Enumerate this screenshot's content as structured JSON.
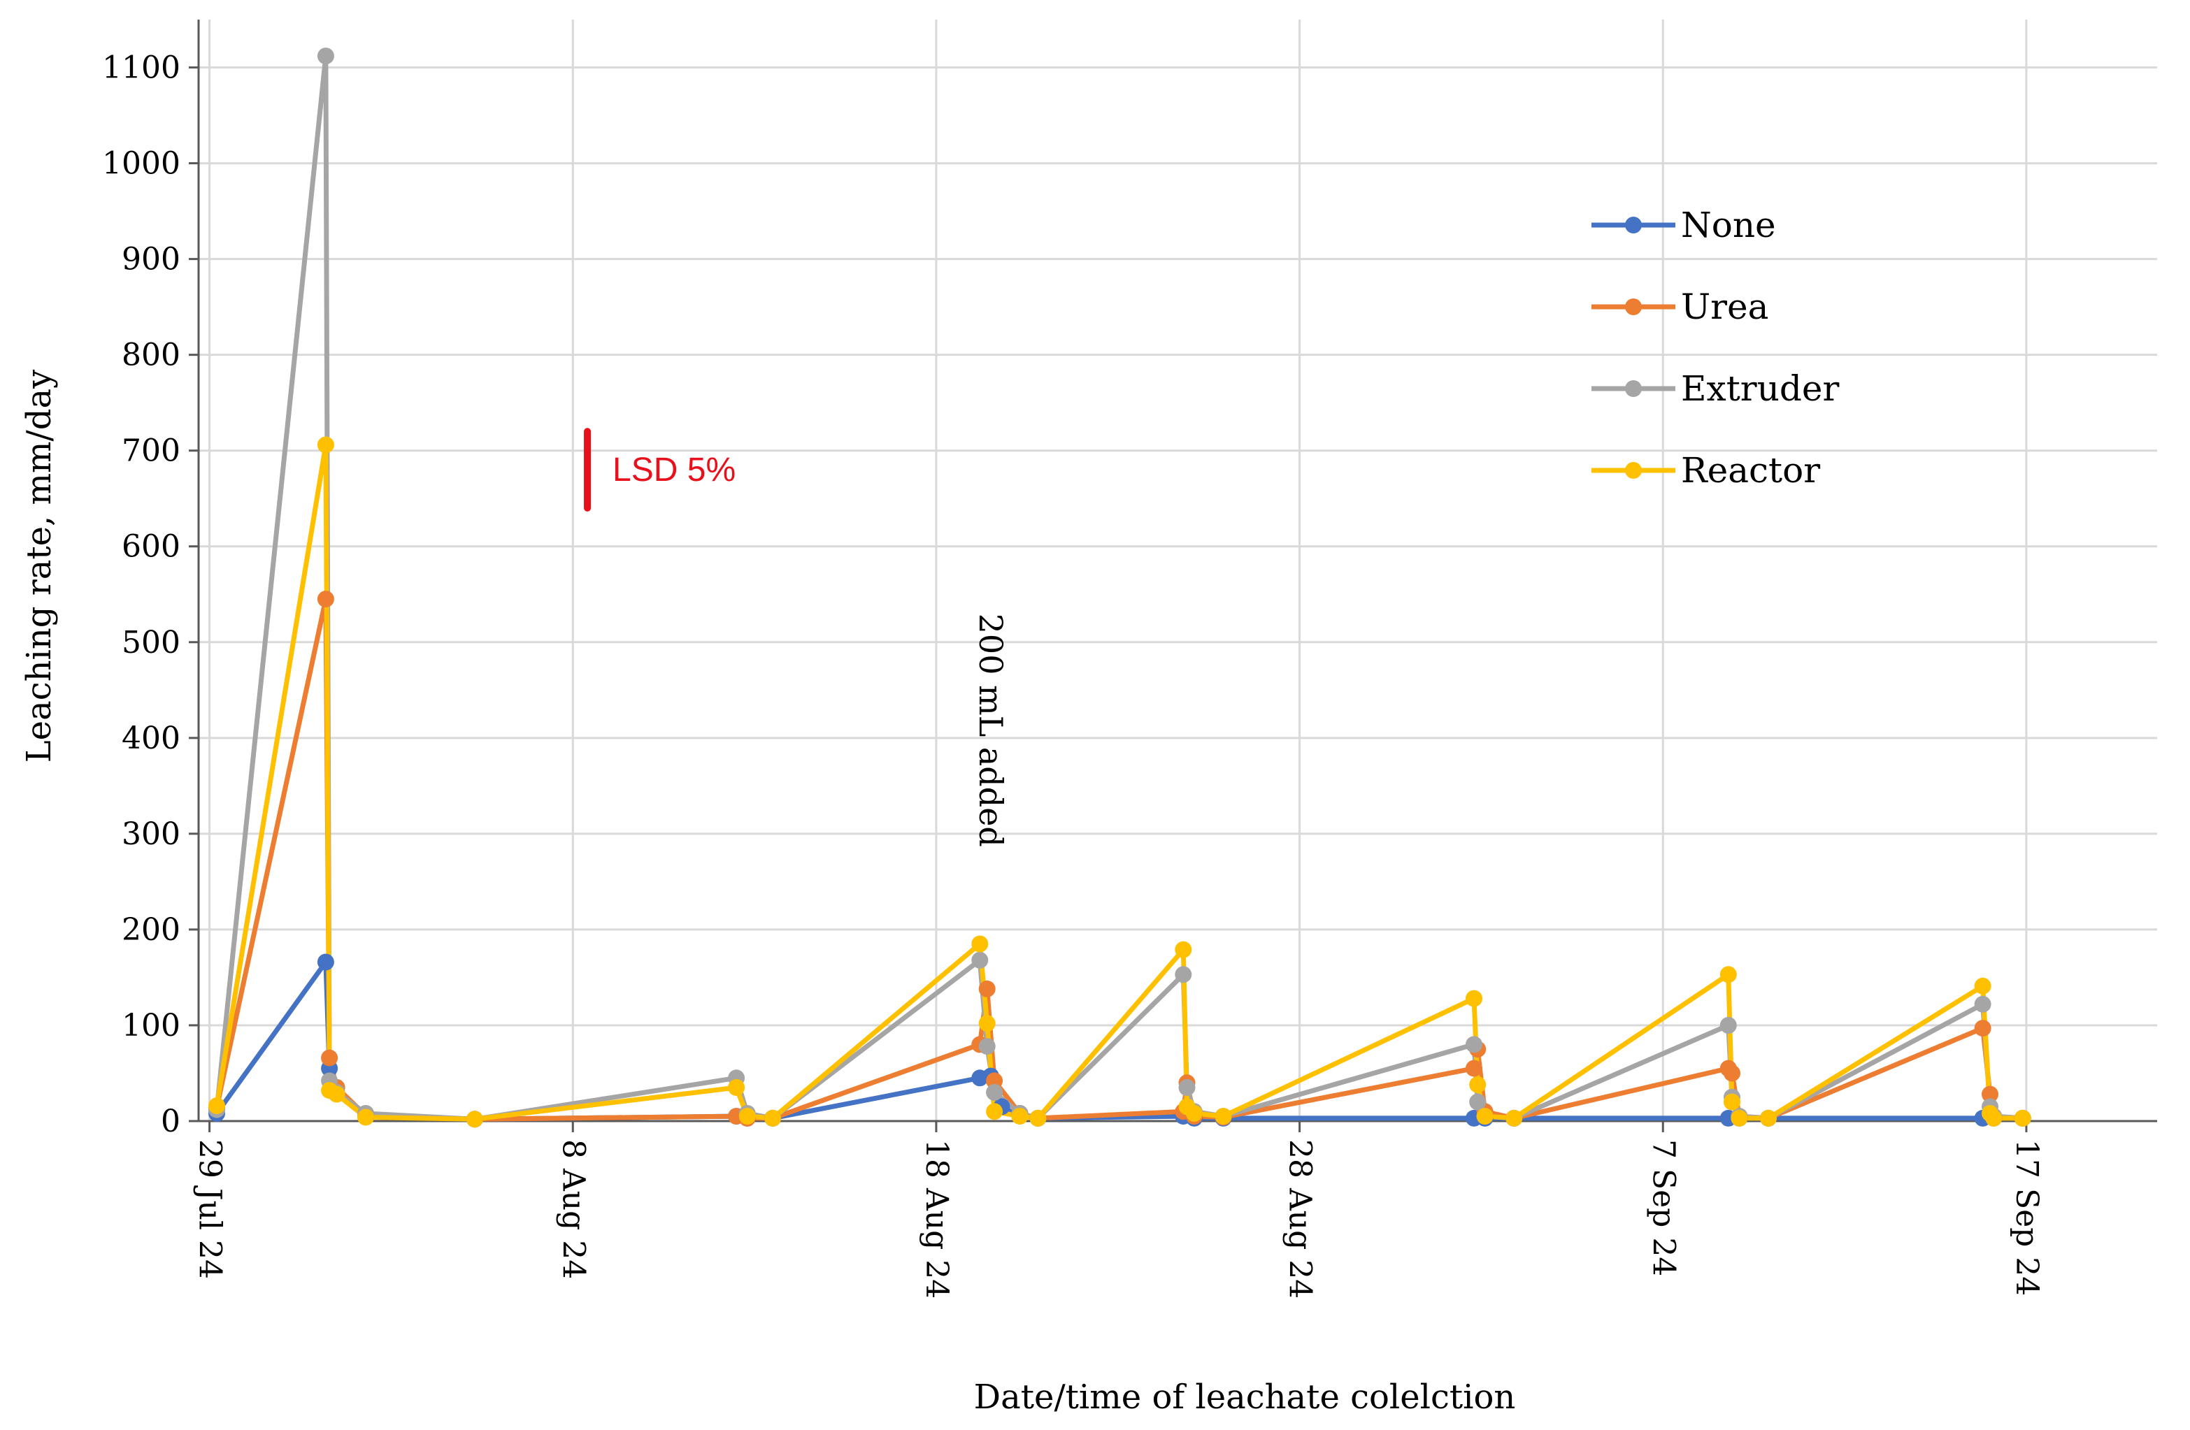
{
  "chart_data": {
    "type": "line",
    "title": "",
    "xlabel": "Date/time of leachate colelction",
    "ylabel": "Leaching rate, mm/day",
    "ylim": [
      0,
      1150
    ],
    "y_ticks": [
      0,
      100,
      200,
      300,
      400,
      500,
      600,
      700,
      800,
      900,
      1000,
      1100
    ],
    "x_domain": [
      -0.3,
      53.6
    ],
    "x_ticks": [
      {
        "day": 0,
        "label": "29 Jul 24"
      },
      {
        "day": 10,
        "label": "8 Aug 24"
      },
      {
        "day": 20,
        "label": "18 Aug 24"
      },
      {
        "day": 30,
        "label": "28 Aug 24"
      },
      {
        "day": 40,
        "label": "7 Sep 24"
      },
      {
        "day": 50,
        "label": "17 Sep 24"
      }
    ],
    "x_unit": "days since 29 Jul 24",
    "grid": true,
    "legend_position": "top-right",
    "series": [
      {
        "name": "None",
        "color": "#4472C4",
        "points": [
          [
            0.2,
            8
          ],
          [
            3.2,
            166
          ],
          [
            3.3,
            55
          ],
          [
            3.5,
            35
          ],
          [
            4.3,
            5
          ],
          [
            7.3,
            2
          ],
          [
            14.5,
            5
          ],
          [
            14.8,
            3
          ],
          [
            15.5,
            3
          ],
          [
            21.2,
            45
          ],
          [
            21.5,
            47
          ],
          [
            21.8,
            15
          ],
          [
            22.3,
            8
          ],
          [
            22.8,
            3
          ],
          [
            26.8,
            5
          ],
          [
            27.1,
            3
          ],
          [
            27.9,
            3
          ],
          [
            34.8,
            3
          ],
          [
            35.1,
            3
          ],
          [
            35.9,
            3
          ],
          [
            41.8,
            3
          ],
          [
            42.1,
            3
          ],
          [
            42.9,
            3
          ],
          [
            48.8,
            3
          ],
          [
            49.1,
            3
          ],
          [
            49.9,
            3
          ]
        ]
      },
      {
        "name": "Urea",
        "color": "#ED7D31",
        "points": [
          [
            0.2,
            14
          ],
          [
            3.2,
            545
          ],
          [
            3.3,
            66
          ],
          [
            3.5,
            35
          ],
          [
            4.3,
            6
          ],
          [
            7.3,
            2
          ],
          [
            14.5,
            5
          ],
          [
            14.8,
            3
          ],
          [
            15.5,
            3
          ],
          [
            21.2,
            80
          ],
          [
            21.4,
            138
          ],
          [
            21.6,
            42
          ],
          [
            22.3,
            8
          ],
          [
            22.8,
            3
          ],
          [
            26.8,
            10
          ],
          [
            26.9,
            40
          ],
          [
            27.1,
            5
          ],
          [
            27.9,
            4
          ],
          [
            34.8,
            55
          ],
          [
            34.9,
            75
          ],
          [
            35.1,
            10
          ],
          [
            35.9,
            3
          ],
          [
            41.8,
            55
          ],
          [
            41.9,
            50
          ],
          [
            42.1,
            5
          ],
          [
            42.9,
            3
          ],
          [
            48.8,
            97
          ],
          [
            49.0,
            28
          ],
          [
            49.1,
            5
          ],
          [
            49.9,
            3
          ]
        ]
      },
      {
        "name": "Extruder",
        "color": "#A5A5A5",
        "points": [
          [
            0.2,
            12
          ],
          [
            3.2,
            1112
          ],
          [
            3.3,
            42
          ],
          [
            3.5,
            30
          ],
          [
            4.3,
            8
          ],
          [
            7.3,
            2
          ],
          [
            14.5,
            45
          ],
          [
            14.8,
            8
          ],
          [
            15.5,
            3
          ],
          [
            21.2,
            168
          ],
          [
            21.4,
            78
          ],
          [
            21.6,
            30
          ],
          [
            22.3,
            8
          ],
          [
            22.8,
            3
          ],
          [
            26.8,
            153
          ],
          [
            26.9,
            35
          ],
          [
            27.1,
            10
          ],
          [
            27.9,
            5
          ],
          [
            34.8,
            80
          ],
          [
            34.9,
            20
          ],
          [
            35.1,
            5
          ],
          [
            35.9,
            3
          ],
          [
            41.8,
            100
          ],
          [
            41.9,
            25
          ],
          [
            42.1,
            5
          ],
          [
            42.9,
            3
          ],
          [
            48.8,
            122
          ],
          [
            49.0,
            15
          ],
          [
            49.1,
            5
          ],
          [
            49.9,
            3
          ]
        ]
      },
      {
        "name": "Reactor",
        "color": "#FFC000",
        "points": [
          [
            0.2,
            16
          ],
          [
            3.2,
            706
          ],
          [
            3.3,
            32
          ],
          [
            3.5,
            28
          ],
          [
            4.3,
            4
          ],
          [
            7.3,
            2
          ],
          [
            14.5,
            35
          ],
          [
            14.8,
            5
          ],
          [
            15.5,
            3
          ],
          [
            21.2,
            185
          ],
          [
            21.4,
            102
          ],
          [
            21.6,
            10
          ],
          [
            22.3,
            5
          ],
          [
            22.8,
            3
          ],
          [
            26.8,
            179
          ],
          [
            26.9,
            15
          ],
          [
            27.1,
            8
          ],
          [
            27.9,
            5
          ],
          [
            34.8,
            128
          ],
          [
            34.9,
            38
          ],
          [
            35.1,
            5
          ],
          [
            35.9,
            3
          ],
          [
            41.8,
            153
          ],
          [
            41.9,
            20
          ],
          [
            42.1,
            3
          ],
          [
            42.9,
            3
          ],
          [
            48.8,
            141
          ],
          [
            49.0,
            8
          ],
          [
            49.1,
            3
          ],
          [
            49.9,
            3
          ]
        ]
      }
    ],
    "annotations": [
      {
        "text": "200 mL added",
        "day": 21.5,
        "y_top": 530,
        "orientation": "rotated 90° clockwise"
      }
    ],
    "error_bar": {
      "label": "LSD 5%",
      "day": 10.4,
      "y_low": 640,
      "y_high": 720,
      "color": "#E8101B"
    }
  }
}
